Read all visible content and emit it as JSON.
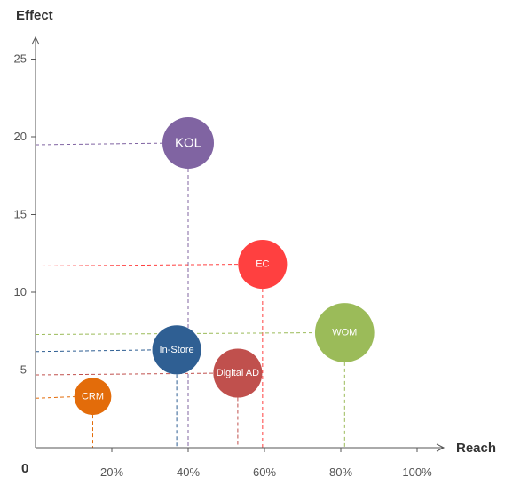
{
  "chart_data": {
    "type": "scatter",
    "xlabel": "Reach",
    "ylabel": "Effect",
    "origin_label": "0",
    "xlim": [
      0,
      105
    ],
    "ylim": [
      0,
      27.5
    ],
    "x_ticks": [
      {
        "value": 20,
        "label": "20%"
      },
      {
        "value": 40,
        "label": "40%"
      },
      {
        "value": 60,
        "label": "60%"
      },
      {
        "value": 80,
        "label": "80%"
      },
      {
        "value": 100,
        "label": "100%"
      }
    ],
    "y_ticks": [
      {
        "value": 5,
        "label": "5"
      },
      {
        "value": 10,
        "label": "10"
      },
      {
        "value": 15,
        "label": "15"
      },
      {
        "value": 20,
        "label": "20"
      },
      {
        "value": 25,
        "label": "25"
      }
    ],
    "grid": false,
    "legend": "none",
    "points": [
      {
        "name": "KOL",
        "x": 40,
        "y": 19.6,
        "size": 1.0,
        "color": "#8064a2"
      },
      {
        "name": "EC",
        "x": 59.5,
        "y": 11.8,
        "size": 0.95,
        "color": "#ff4040"
      },
      {
        "name": "WOM",
        "x": 81,
        "y": 7.4,
        "size": 1.15,
        "color": "#9bbb59"
      },
      {
        "name": "In-Store",
        "x": 37,
        "y": 6.3,
        "size": 0.95,
        "color": "#2f5f93"
      },
      {
        "name": "Digital AD",
        "x": 53,
        "y": 4.8,
        "size": 0.95,
        "color": "#c0504d"
      },
      {
        "name": "CRM",
        "x": 15,
        "y": 3.3,
        "size": 0.72,
        "color": "#e36c0a"
      }
    ]
  }
}
